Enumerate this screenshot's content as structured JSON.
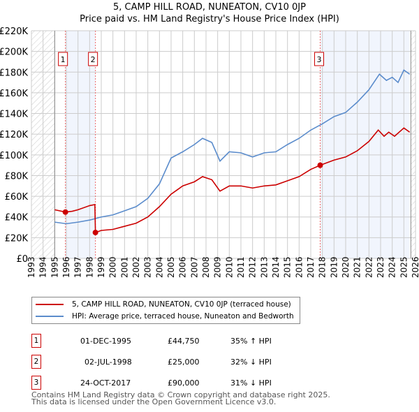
{
  "chart_data": {
    "type": "line",
    "title": "5, CAMP HILL ROAD, NUNEATON, CV10 0JP",
    "subtitle": "Price paid vs. HM Land Registry's House Price Index (HPI)",
    "xlim": [
      1993,
      2026
    ],
    "ylim": [
      0,
      220000
    ],
    "y_ticks": [
      "£0",
      "£20K",
      "£40K",
      "£60K",
      "£80K",
      "£100K",
      "£120K",
      "£140K",
      "£160K",
      "£180K",
      "£200K",
      "£220K"
    ],
    "x_ticks": [
      "1993",
      "1994",
      "1995",
      "1996",
      "1997",
      "1998",
      "1999",
      "2000",
      "2001",
      "2002",
      "2003",
      "2004",
      "2005",
      "2006",
      "2007",
      "2008",
      "2009",
      "2010",
      "2011",
      "2012",
      "2013",
      "2014",
      "2015",
      "2016",
      "2017",
      "2018",
      "2019",
      "2020",
      "2021",
      "2022",
      "2023",
      "2024",
      "2025",
      "2026"
    ],
    "grid": true,
    "series": [
      {
        "name": "5, CAMP HILL ROAD, NUNEATON, CV10 0JP (terraced house)",
        "color": "#cc0000",
        "x": [
          1995,
          1995.92,
          1996.5,
          1997,
          1998,
          1998.45,
          1998.5,
          1999,
          2000,
          2001,
          2002,
          2003,
          2004,
          2005,
          2005.5,
          2006,
          2007,
          2007.7,
          2008.5,
          2009.2,
          2010,
          2011,
          2012,
          2013,
          2014,
          2015,
          2016,
          2017,
          2017.81,
          2019,
          2020,
          2021,
          2022,
          2022.8,
          2023.3,
          2023.7,
          2024.2,
          2025,
          2025.5
        ],
        "y": [
          47000,
          44750,
          45500,
          47000,
          51000,
          52000,
          25000,
          27000,
          28000,
          31000,
          34000,
          40000,
          50000,
          62000,
          66000,
          70000,
          74000,
          79000,
          76000,
          65000,
          70000,
          70000,
          68000,
          70000,
          71000,
          75000,
          79000,
          86000,
          90000,
          95000,
          98000,
          104000,
          113000,
          124000,
          118000,
          122000,
          118000,
          126000,
          122000
        ]
      },
      {
        "name": "HPI: Average price, terraced house, Nuneaton and Bedworth",
        "color": "#5b8ccc",
        "x": [
          1995,
          1996,
          1997,
          1998,
          1999,
          2000,
          2001,
          2002,
          2003,
          2004,
          2005,
          2006,
          2007,
          2007.7,
          2008.5,
          2009.2,
          2010,
          2011,
          2012,
          2013,
          2014,
          2015,
          2016,
          2017,
          2018,
          2019,
          2020,
          2021,
          2022,
          2022.9,
          2023.5,
          2024,
          2024.5,
          2025,
          2025.5
        ],
        "y": [
          35000,
          33500,
          35000,
          37000,
          40000,
          42000,
          46000,
          50000,
          58000,
          72000,
          97000,
          103000,
          110000,
          116000,
          112000,
          94000,
          103000,
          102000,
          98000,
          102000,
          103000,
          110000,
          116000,
          124000,
          130000,
          137000,
          141000,
          151000,
          163000,
          178000,
          172000,
          175000,
          170000,
          182000,
          178000
        ]
      }
    ],
    "transactions": [
      {
        "label": "1",
        "x": 1995.92,
        "price": 44750,
        "date": "01-DEC-1995",
        "price_text": "£44,750",
        "hpi": "35% ↑ HPI"
      },
      {
        "label": "2",
        "x": 1998.5,
        "price": 25000,
        "date": "02-JUL-1998",
        "price_text": "£25,000",
        "hpi": "32% ↓ HPI"
      },
      {
        "label": "3",
        "x": 2017.81,
        "price": 90000,
        "date": "24-OCT-2017",
        "price_text": "£90,000",
        "hpi": "31% ↓ HPI"
      }
    ],
    "shaded_ranges": [
      [
        1995.92,
        1998.5
      ],
      [
        2017.81,
        2025.5
      ]
    ],
    "hatched_ranges": [
      [
        1993,
        1995
      ],
      [
        2025.6,
        2026
      ]
    ],
    "legend_position": "below"
  },
  "footer": {
    "line1": "Contains HM Land Registry data © Crown copyright and database right 2025.",
    "line2": "This data is licensed under the Open Government Licence v3.0."
  }
}
